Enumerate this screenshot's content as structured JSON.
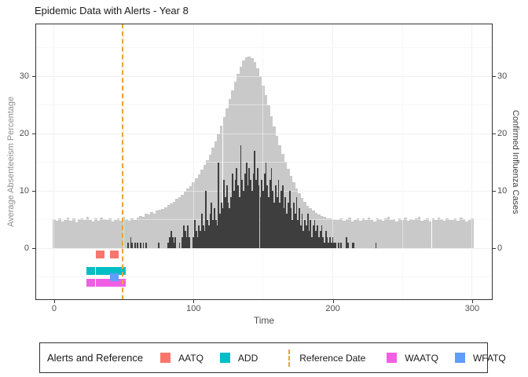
{
  "title": "Epidemic Data with Alerts - Year 8",
  "axes": {
    "x": {
      "label": "Time",
      "ticks": [
        0,
        100,
        200,
        300
      ],
      "minor": [
        50,
        150,
        250
      ]
    },
    "y_left": {
      "label": "Average Absenteeism Percentage",
      "ticks": [
        0,
        10,
        20,
        30
      ],
      "minor": [
        -5,
        5,
        15,
        25,
        35
      ]
    },
    "y_right": {
      "label": "Confirmed Influenza Cases",
      "ticks": [
        0,
        10,
        20,
        30
      ]
    }
  },
  "legend": {
    "title": "Alerts and Reference",
    "items": [
      {
        "label": "AATQ",
        "color": "#F8766D",
        "kind": "square"
      },
      {
        "label": "ADD",
        "color": "#00BEC4",
        "kind": "square"
      },
      {
        "label": "Reference Date",
        "color": "#E9A33D",
        "kind": "line"
      },
      {
        "label": "WAATQ",
        "color": "#F05FE3",
        "kind": "square"
      },
      {
        "label": "WFATQ",
        "color": "#619CFF",
        "kind": "square"
      }
    ]
  },
  "colors": {
    "absenteeism_fill": "#C9C9C9",
    "cases_fill": "#3E3E3E",
    "reference_line": "#E9A33D",
    "panel_border": "#333333",
    "grid_major": "#E4E4E4",
    "grid_minor": "#F0F0F0"
  },
  "chart_data": {
    "type": "bar",
    "title": "Epidemic Data with Alerts - Year 8",
    "xlabel": "Time",
    "ylabel_left": "Average Absenteeism Percentage",
    "ylabel_right": "Confirmed Influenza Cases",
    "xlim": [
      -13.5,
      314.7
    ],
    "ylim": [
      -9,
      39.2
    ],
    "grid": true,
    "legend_position": "bottom",
    "reference_date": 49,
    "series": [
      {
        "name": "Average Absenteeism Percentage",
        "type": "bar",
        "color": "#C9C9C9",
        "x_start": 0,
        "step": 2,
        "values": [
          5.1,
          4.8,
          5.3,
          4.7,
          5.0,
          5.4,
          4.8,
          5.2,
          4.6,
          5.1,
          5.3,
          4.9,
          5.5,
          5.0,
          4.7,
          5.2,
          4.8,
          5.4,
          5.1,
          4.9,
          5.3,
          4.7,
          5.0,
          5.2,
          4.8,
          5.5,
          5.1,
          4.8,
          5.3,
          5.0,
          5.4,
          5.7,
          5.5,
          6.0,
          5.9,
          6.3,
          6.1,
          6.6,
          6.8,
          6.9,
          7.2,
          7.6,
          7.9,
          8.1,
          8.6,
          9.0,
          9.4,
          9.9,
          10.4,
          10.9,
          11.5,
          12.2,
          12.9,
          13.7,
          14.5,
          15.4,
          16.4,
          17.5,
          18.7,
          20.0,
          21.4,
          22.9,
          24.4,
          26.0,
          27.6,
          29.1,
          30.5,
          31.7,
          32.7,
          33.3,
          33.5,
          33.2,
          32.5,
          31.4,
          30.0,
          28.4,
          26.7,
          24.9,
          23.1,
          21.3,
          19.6,
          18.0,
          16.5,
          15.1,
          13.8,
          12.6,
          11.5,
          10.5,
          9.6,
          8.8,
          8.1,
          7.5,
          7.0,
          6.6,
          6.2,
          5.9,
          5.7,
          5.5,
          5.3,
          5.2,
          5.1,
          5.0,
          4.9,
          5.2,
          4.8,
          5.1,
          5.4,
          4.7,
          5.0,
          5.3,
          4.8,
          5.2,
          4.9,
          5.4,
          5.0,
          4.7,
          5.3,
          5.1,
          4.8,
          5.2,
          5.5,
          4.9,
          5.1,
          4.7,
          5.3,
          5.0,
          5.4,
          4.8,
          5.1,
          4.9,
          5.2,
          5.5,
          4.8,
          5.0,
          5.3,
          4.7,
          5.2,
          4.9,
          5.4,
          5.1,
          4.8,
          5.3,
          5.0,
          4.9,
          5.2,
          4.8,
          5.4,
          5.1,
          4.7,
          5.0,
          5.2
        ]
      },
      {
        "name": "Confirmed Influenza Cases",
        "type": "bar",
        "color": "#3E3E3E",
        "points": [
          [
            53,
            1
          ],
          [
            55,
            2
          ],
          [
            56,
            1
          ],
          [
            58,
            1
          ],
          [
            60,
            1
          ],
          [
            62,
            1
          ],
          [
            64,
            1
          ],
          [
            66,
            1
          ],
          [
            75,
            1
          ],
          [
            82,
            1
          ],
          [
            83,
            2
          ],
          [
            84,
            3
          ],
          [
            85,
            2
          ],
          [
            86,
            1
          ],
          [
            87,
            2
          ],
          [
            90,
            1
          ],
          [
            92,
            2
          ],
          [
            93,
            4
          ],
          [
            94,
            3
          ],
          [
            95,
            2
          ],
          [
            96,
            4
          ],
          [
            97,
            2
          ],
          [
            100,
            2
          ],
          [
            101,
            5
          ],
          [
            102,
            3
          ],
          [
            103,
            2
          ],
          [
            104,
            4
          ],
          [
            105,
            3
          ],
          [
            106,
            6
          ],
          [
            107,
            4
          ],
          [
            108,
            3
          ],
          [
            109,
            10
          ],
          [
            110,
            5
          ],
          [
            111,
            4
          ],
          [
            112,
            6
          ],
          [
            113,
            8
          ],
          [
            114,
            5
          ],
          [
            115,
            7
          ],
          [
            116,
            5
          ],
          [
            117,
            4
          ],
          [
            118,
            15
          ],
          [
            119,
            6
          ],
          [
            120,
            8
          ],
          [
            121,
            7
          ],
          [
            122,
            12
          ],
          [
            123,
            9
          ],
          [
            124,
            11
          ],
          [
            125,
            8
          ],
          [
            126,
            7
          ],
          [
            127,
            9
          ],
          [
            128,
            13
          ],
          [
            129,
            10
          ],
          [
            130,
            12
          ],
          [
            131,
            14
          ],
          [
            132,
            11
          ],
          [
            133,
            9
          ],
          [
            134,
            18
          ],
          [
            135,
            12
          ],
          [
            136,
            10
          ],
          [
            137,
            13
          ],
          [
            138,
            15
          ],
          [
            139,
            11
          ],
          [
            140,
            14
          ],
          [
            141,
            12
          ],
          [
            142,
            10
          ],
          [
            143,
            13
          ],
          [
            144,
            17
          ],
          [
            145,
            12
          ],
          [
            146,
            14
          ],
          [
            147,
            11
          ],
          [
            148,
            9
          ],
          [
            149,
            12
          ],
          [
            150,
            10
          ],
          [
            151,
            13
          ],
          [
            152,
            15
          ],
          [
            153,
            11
          ],
          [
            154,
            9
          ],
          [
            155,
            12
          ],
          [
            156,
            14
          ],
          [
            157,
            10
          ],
          [
            158,
            8
          ],
          [
            159,
            11
          ],
          [
            160,
            9
          ],
          [
            161,
            12
          ],
          [
            162,
            8
          ],
          [
            163,
            10
          ],
          [
            164,
            11
          ],
          [
            165,
            7
          ],
          [
            166,
            9
          ],
          [
            167,
            6
          ],
          [
            168,
            8
          ],
          [
            169,
            10
          ],
          [
            170,
            7
          ],
          [
            171,
            5
          ],
          [
            172,
            8
          ],
          [
            173,
            6
          ],
          [
            174,
            9
          ],
          [
            175,
            5
          ],
          [
            176,
            7
          ],
          [
            177,
            4
          ],
          [
            178,
            6
          ],
          [
            179,
            3
          ],
          [
            180,
            5
          ],
          [
            181,
            4
          ],
          [
            182,
            6
          ],
          [
            183,
            3
          ],
          [
            184,
            5
          ],
          [
            185,
            2
          ],
          [
            186,
            4
          ],
          [
            187,
            5
          ],
          [
            188,
            3
          ],
          [
            189,
            4
          ],
          [
            190,
            2
          ],
          [
            191,
            3
          ],
          [
            192,
            4
          ],
          [
            193,
            2
          ],
          [
            194,
            1
          ],
          [
            195,
            3
          ],
          [
            196,
            2
          ],
          [
            197,
            1
          ],
          [
            198,
            2
          ],
          [
            199,
            1
          ],
          [
            200,
            2
          ],
          [
            201,
            1
          ],
          [
            202,
            1
          ],
          [
            204,
            1
          ],
          [
            206,
            1
          ],
          [
            210,
            2
          ],
          [
            211,
            1
          ],
          [
            214,
            1
          ],
          [
            215,
            1
          ],
          [
            231,
            1
          ]
        ]
      }
    ],
    "alerts": [
      {
        "name": "AATQ",
        "color": "#F8766D",
        "y": -1,
        "times": [
          33,
          43
        ]
      },
      {
        "name": "ADD",
        "color": "#00BEC4",
        "y": -4,
        "times": [
          26,
          33,
          36,
          39,
          42,
          45,
          48
        ]
      },
      {
        "name": "WAATQ",
        "color": "#F05FE3",
        "y": -6,
        "times": [
          26,
          33,
          36,
          39,
          42,
          48
        ]
      },
      {
        "name": "WFATQ",
        "color": "#619CFF",
        "y": -5,
        "times": [
          43
        ]
      }
    ]
  }
}
